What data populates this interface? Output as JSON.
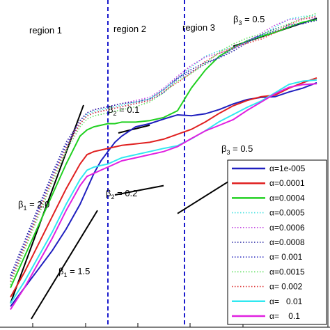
{
  "chart_data": {
    "type": "line",
    "title": "",
    "xlabel": "",
    "ylabel": "",
    "x_scale": "log",
    "y_scale": "log",
    "grid": false,
    "legend_position": "bottom-right",
    "regions": [
      {
        "label": "region 1"
      },
      {
        "label": "region 2"
      },
      {
        "label": "region 3"
      }
    ],
    "region_boundaries_x": [
      0.14,
      0.25
    ],
    "slope_annotations": [
      {
        "label": "β",
        "sub": "1",
        "value": " = 2.0"
      },
      {
        "label": "β",
        "sub": "1",
        "value": " = 1.5"
      },
      {
        "label": "β",
        "sub": "2",
        "value": " = 0.1"
      },
      {
        "label": "β",
        "sub": "2",
        "value": " = 0.2"
      },
      {
        "label": "β",
        "sub": "3",
        "value": " = 0.5"
      },
      {
        "label": "β",
        "sub": "3",
        "value": " = 0.5"
      }
    ],
    "reference_slopes": [
      {
        "slope": 2.0,
        "x": [
          0.0,
          0.105
        ],
        "y": [
          0.05,
          0.69
        ]
      },
      {
        "slope": 1.5,
        "x": [
          0.03,
          0.125
        ],
        "y": [
          0.0,
          0.35
        ]
      },
      {
        "slope": 0.1,
        "x": [
          0.155,
          0.2
        ],
        "y": [
          0.6,
          0.625
        ]
      },
      {
        "slope": 0.2,
        "x": [
          0.15,
          0.22
        ],
        "y": [
          0.4,
          0.43
        ]
      },
      {
        "slope": 0.5,
        "x": [
          0.32,
          0.44
        ],
        "y": [
          0.88,
          0.97
        ]
      },
      {
        "slope": 0.5,
        "x": [
          0.24,
          0.325
        ],
        "y": [
          0.34,
          0.46
        ]
      }
    ],
    "x": [
      0.0,
      0.02,
      0.04,
      0.06,
      0.08,
      0.1,
      0.11,
      0.12,
      0.13,
      0.14,
      0.15,
      0.16,
      0.18,
      0.2,
      0.22,
      0.24,
      0.26,
      0.28,
      0.3,
      0.32,
      0.34,
      0.36,
      0.38,
      0.4,
      0.42,
      0.44
    ],
    "series": [
      {
        "name": "α=1e-005",
        "color": "#1f1fbf",
        "style": "solid",
        "values": [
          0.04,
          0.1,
          0.16,
          0.22,
          0.29,
          0.37,
          0.42,
          0.47,
          0.51,
          0.54,
          0.57,
          0.59,
          0.62,
          0.63,
          0.645,
          0.655,
          0.66,
          0.67,
          0.68,
          0.69,
          0.7,
          0.71,
          0.72,
          0.74,
          0.75,
          0.76
        ]
      },
      {
        "name": "α=0.0001",
        "color": "#e02020",
        "style": "solid",
        "values": [
          0.07,
          0.15,
          0.24,
          0.33,
          0.42,
          0.5,
          0.53,
          0.54,
          0.545,
          0.55,
          0.555,
          0.56,
          0.565,
          0.57,
          0.58,
          0.6,
          0.62,
          0.64,
          0.66,
          0.68,
          0.7,
          0.72,
          0.73,
          0.75,
          0.76,
          0.77
        ]
      },
      {
        "name": "α=0.0004",
        "color": "#20d020",
        "style": "solid",
        "values": [
          0.1,
          0.2,
          0.3,
          0.4,
          0.5,
          0.59,
          0.61,
          0.62,
          0.625,
          0.63,
          0.63,
          0.635,
          0.635,
          0.64,
          0.65,
          0.68,
          0.75,
          0.8,
          0.84,
          0.87,
          0.9,
          0.92,
          0.93,
          0.94,
          0.95,
          0.96
        ]
      },
      {
        "name": "α=0.0005",
        "color": "#40e0e0",
        "style": "dotted",
        "values": [
          0.12,
          0.23,
          0.34,
          0.45,
          0.55,
          0.63,
          0.66,
          0.67,
          0.675,
          0.68,
          0.685,
          0.69,
          0.7,
          0.71,
          0.74,
          0.78,
          0.81,
          0.84,
          0.86,
          0.88,
          0.9,
          0.92,
          0.94,
          0.96,
          0.97,
          0.98
        ]
      },
      {
        "name": "α=0.0006",
        "color": "#c040e0",
        "style": "dotted",
        "values": [
          0.13,
          0.24,
          0.35,
          0.46,
          0.56,
          0.64,
          0.665,
          0.675,
          0.68,
          0.685,
          0.69,
          0.695,
          0.705,
          0.715,
          0.745,
          0.78,
          0.81,
          0.84,
          0.86,
          0.88,
          0.9,
          0.92,
          0.94,
          0.96,
          0.97,
          0.98
        ]
      },
      {
        "name": "α=0.0008",
        "color": "#2020a0",
        "style": "dotted",
        "values": [
          0.14,
          0.25,
          0.36,
          0.47,
          0.57,
          0.64,
          0.665,
          0.675,
          0.68,
          0.685,
          0.69,
          0.695,
          0.7,
          0.71,
          0.74,
          0.77,
          0.8,
          0.83,
          0.85,
          0.87,
          0.89,
          0.91,
          0.93,
          0.95,
          0.96,
          0.97
        ]
      },
      {
        "name": "α= 0.001",
        "color": "#3030c0",
        "style": "dotted",
        "values": [
          0.13,
          0.24,
          0.35,
          0.46,
          0.56,
          0.63,
          0.655,
          0.665,
          0.67,
          0.675,
          0.68,
          0.685,
          0.695,
          0.705,
          0.73,
          0.77,
          0.8,
          0.83,
          0.85,
          0.87,
          0.89,
          0.91,
          0.93,
          0.95,
          0.96,
          0.97
        ]
      },
      {
        "name": "α=0.0015",
        "color": "#60e060",
        "style": "dotted",
        "values": [
          0.11,
          0.22,
          0.33,
          0.44,
          0.54,
          0.62,
          0.645,
          0.655,
          0.66,
          0.665,
          0.67,
          0.675,
          0.685,
          0.7,
          0.73,
          0.77,
          0.8,
          0.83,
          0.86,
          0.88,
          0.9,
          0.92,
          0.94,
          0.96,
          0.97,
          0.98
        ]
      },
      {
        "name": "α= 0.002",
        "color": "#e04040",
        "style": "dotted",
        "values": [
          0.12,
          0.23,
          0.34,
          0.45,
          0.55,
          0.63,
          0.655,
          0.665,
          0.67,
          0.675,
          0.68,
          0.685,
          0.695,
          0.705,
          0.735,
          0.77,
          0.8,
          0.83,
          0.85,
          0.87,
          0.89,
          0.91,
          0.93,
          0.95,
          0.96,
          0.97
        ]
      },
      {
        "name": "α=   0.01",
        "color": "#30e8f0",
        "style": "solid",
        "values": [
          0.05,
          0.12,
          0.2,
          0.28,
          0.37,
          0.45,
          0.48,
          0.49,
          0.495,
          0.5,
          0.51,
          0.52,
          0.53,
          0.54,
          0.55,
          0.565,
          0.58,
          0.6,
          0.63,
          0.66,
          0.69,
          0.71,
          0.73,
          0.75,
          0.76,
          0.77
        ]
      },
      {
        "name": "α=    0.1",
        "color": "#e020e0",
        "style": "solid",
        "values": [
          0.03,
          0.1,
          0.18,
          0.26,
          0.35,
          0.43,
          0.46,
          0.47,
          0.48,
          0.49,
          0.5,
          0.51,
          0.52,
          0.53,
          0.54,
          0.555,
          0.575,
          0.6,
          0.625,
          0.65,
          0.68,
          0.7,
          0.72,
          0.74,
          0.755,
          0.765
        ]
      }
    ]
  }
}
